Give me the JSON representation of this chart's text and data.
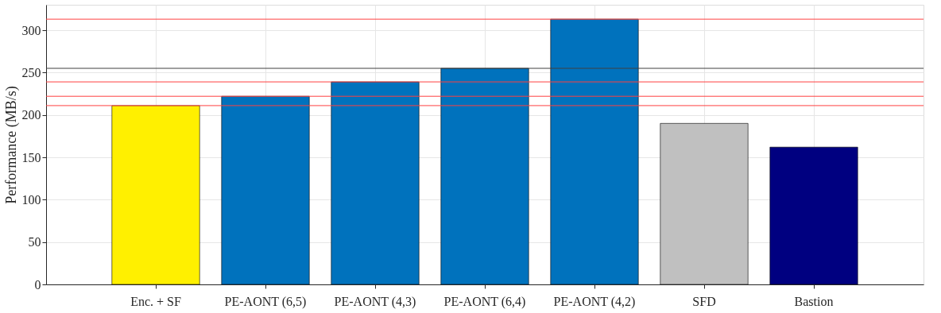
{
  "chart_data": {
    "type": "bar",
    "ylabel": "Performance (MB/s)",
    "categories": [
      "Enc. + SF",
      "PE-AONT (6,5)",
      "PE-AONT (4,3)",
      "PE-AONT (6,4)",
      "PE-AONT (4,2)",
      "SFD",
      "Bastion"
    ],
    "values": [
      211,
      222,
      239,
      255,
      313,
      190,
      162
    ],
    "colors": [
      "#fff000",
      "#0072bd",
      "#0072bd",
      "#0072bd",
      "#0072bd",
      "#c0c0c0",
      "#000080"
    ],
    "ylim": [
      0,
      330
    ],
    "yticks": [
      0,
      50,
      100,
      150,
      200,
      250,
      300
    ],
    "grid": true,
    "ref_lines": [
      {
        "axis": "y",
        "value": 211,
        "color": "#ff4040"
      },
      {
        "axis": "y",
        "value": 222,
        "color": "#ff4040"
      },
      {
        "axis": "y",
        "value": 239,
        "color": "#ff4040"
      },
      {
        "axis": "y",
        "value": 255,
        "color": "#404040"
      },
      {
        "axis": "y",
        "value": 313,
        "color": "#ff4040"
      }
    ]
  }
}
